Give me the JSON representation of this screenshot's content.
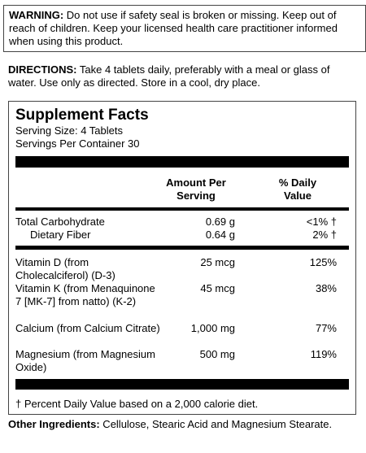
{
  "warning": {
    "label": "WARNING:",
    "text": " Do not use if safety seal is broken or missing. Keep out of reach of children. Keep your licensed health care practitioner informed when using this product."
  },
  "directions": {
    "label": "DIRECTIONS:",
    "text": " Take 4 tablets daily, preferably with a meal or glass of water. Use only as directed.  Store in a cool, dry place."
  },
  "facts": {
    "title": "Supplement Facts",
    "serving_size": "Serving Size: 4 Tablets",
    "servings_per_container": "Servings Per Container 30",
    "header_amount_1": "Amount Per",
    "header_amount_2": "Serving",
    "header_dv_1": "% Daily",
    "header_dv_2": "Value",
    "rows": [
      {
        "name": "Total Carbohydrate",
        "amount": "0.69 g",
        "dv": "<1% †"
      },
      {
        "name": "Dietary Fiber",
        "amount": "0.64 g",
        "dv": "2% †"
      },
      {
        "name": "Vitamin D (from Cholecalciferol) (D-3)",
        "amount": "25 mcg",
        "dv": "125%"
      },
      {
        "name": "Vitamin K (from Menaquinone 7 [MK-7] from natto) (K-2)",
        "amount": "45 mcg",
        "dv": "38%"
      },
      {
        "name": "Calcium (from Calcium Citrate)",
        "amount": "1,000 mg",
        "dv": "77%"
      },
      {
        "name": "Magnesium (from Magnesium Oxide)",
        "amount": "500 mg",
        "dv": "119%"
      }
    ],
    "footnote": "† Percent Daily Value based on a 2,000 calorie diet."
  },
  "other": {
    "label": "Other Ingredients:",
    "text": " Cellulose, Stearic Acid and Magnesium Stearate."
  }
}
